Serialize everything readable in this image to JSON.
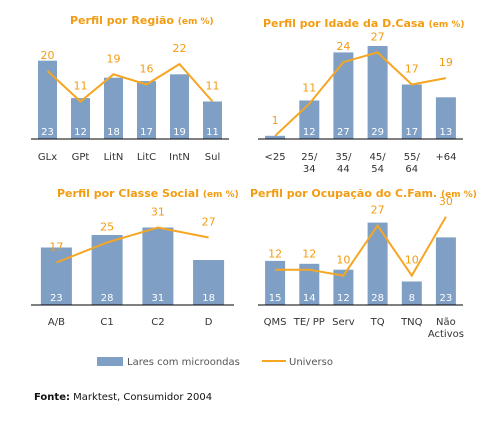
{
  "chart_data": [
    {
      "type": "bar",
      "title": "Perfil por Região",
      "unit": "(em %)",
      "categories": [
        [
          "GLx"
        ],
        [
          "GPt"
        ],
        [
          "LitN"
        ],
        [
          "LitC"
        ],
        [
          "IntN"
        ],
        [
          "Sul"
        ]
      ],
      "series": [
        {
          "name": "Lares com microondas",
          "type": "bar",
          "values": [
            23,
            12,
            18,
            17,
            19,
            11
          ]
        },
        {
          "name": "Universo",
          "type": "line",
          "values": [
            20,
            11,
            19,
            16,
            22,
            11
          ]
        }
      ],
      "ylim": [
        0,
        32
      ]
    },
    {
      "type": "bar",
      "title": "Perfil por Idade da D.Casa",
      "unit": "(em %)",
      "categories": [
        [
          "<25"
        ],
        [
          "25/",
          "34"
        ],
        [
          "35/",
          "44"
        ],
        [
          "45/",
          "54"
        ],
        [
          "55/",
          "64"
        ],
        [
          "+64"
        ]
      ],
      "series": [
        {
          "name": "Lares com microondas",
          "type": "bar",
          "values": [
            1,
            12,
            27,
            29,
            17,
            13
          ]
        },
        {
          "name": "Universo",
          "type": "line",
          "values": [
            1,
            11,
            24,
            27,
            17,
            19
          ]
        }
      ],
      "ylim": [
        0,
        34
      ]
    },
    {
      "type": "bar",
      "title": "Perfil por Classe Social",
      "unit": "(em %)",
      "categories": [
        [
          "A/B"
        ],
        [
          "C1"
        ],
        [
          "C2"
        ],
        [
          "D"
        ]
      ],
      "series": [
        {
          "name": "Lares com microondas",
          "type": "bar",
          "values": [
            23,
            28,
            31,
            18
          ]
        },
        {
          "name": "Universo",
          "type": "line",
          "values": [
            17,
            25,
            31,
            27
          ]
        }
      ],
      "ylim": [
        0,
        40
      ]
    },
    {
      "type": "bar",
      "title": "Perfil por Ocupação do C.Fam.",
      "unit": "(em %)",
      "categories": [
        [
          "QMS"
        ],
        [
          "TE/ PP"
        ],
        [
          "Serv"
        ],
        [
          "TQ"
        ],
        [
          "TNQ"
        ],
        [
          "Não",
          "Activos"
        ]
      ],
      "series": [
        {
          "name": "Lares com microondas",
          "type": "bar",
          "values": [
            15,
            14,
            12,
            28,
            8,
            23
          ]
        },
        {
          "name": "Universo",
          "type": "line",
          "values": [
            12,
            12,
            10,
            27,
            10,
            30
          ]
        }
      ],
      "ylim": [
        0,
        34
      ]
    }
  ],
  "legend": {
    "bar_label": "Lares com microondas",
    "line_label": "Universo"
  },
  "source": {
    "label": "Fonte:",
    "text": " Marktest, Consumidor 2004"
  },
  "colors": {
    "bar": "#7f9fc4",
    "line": "#f5a623",
    "title": "#f39c12"
  }
}
